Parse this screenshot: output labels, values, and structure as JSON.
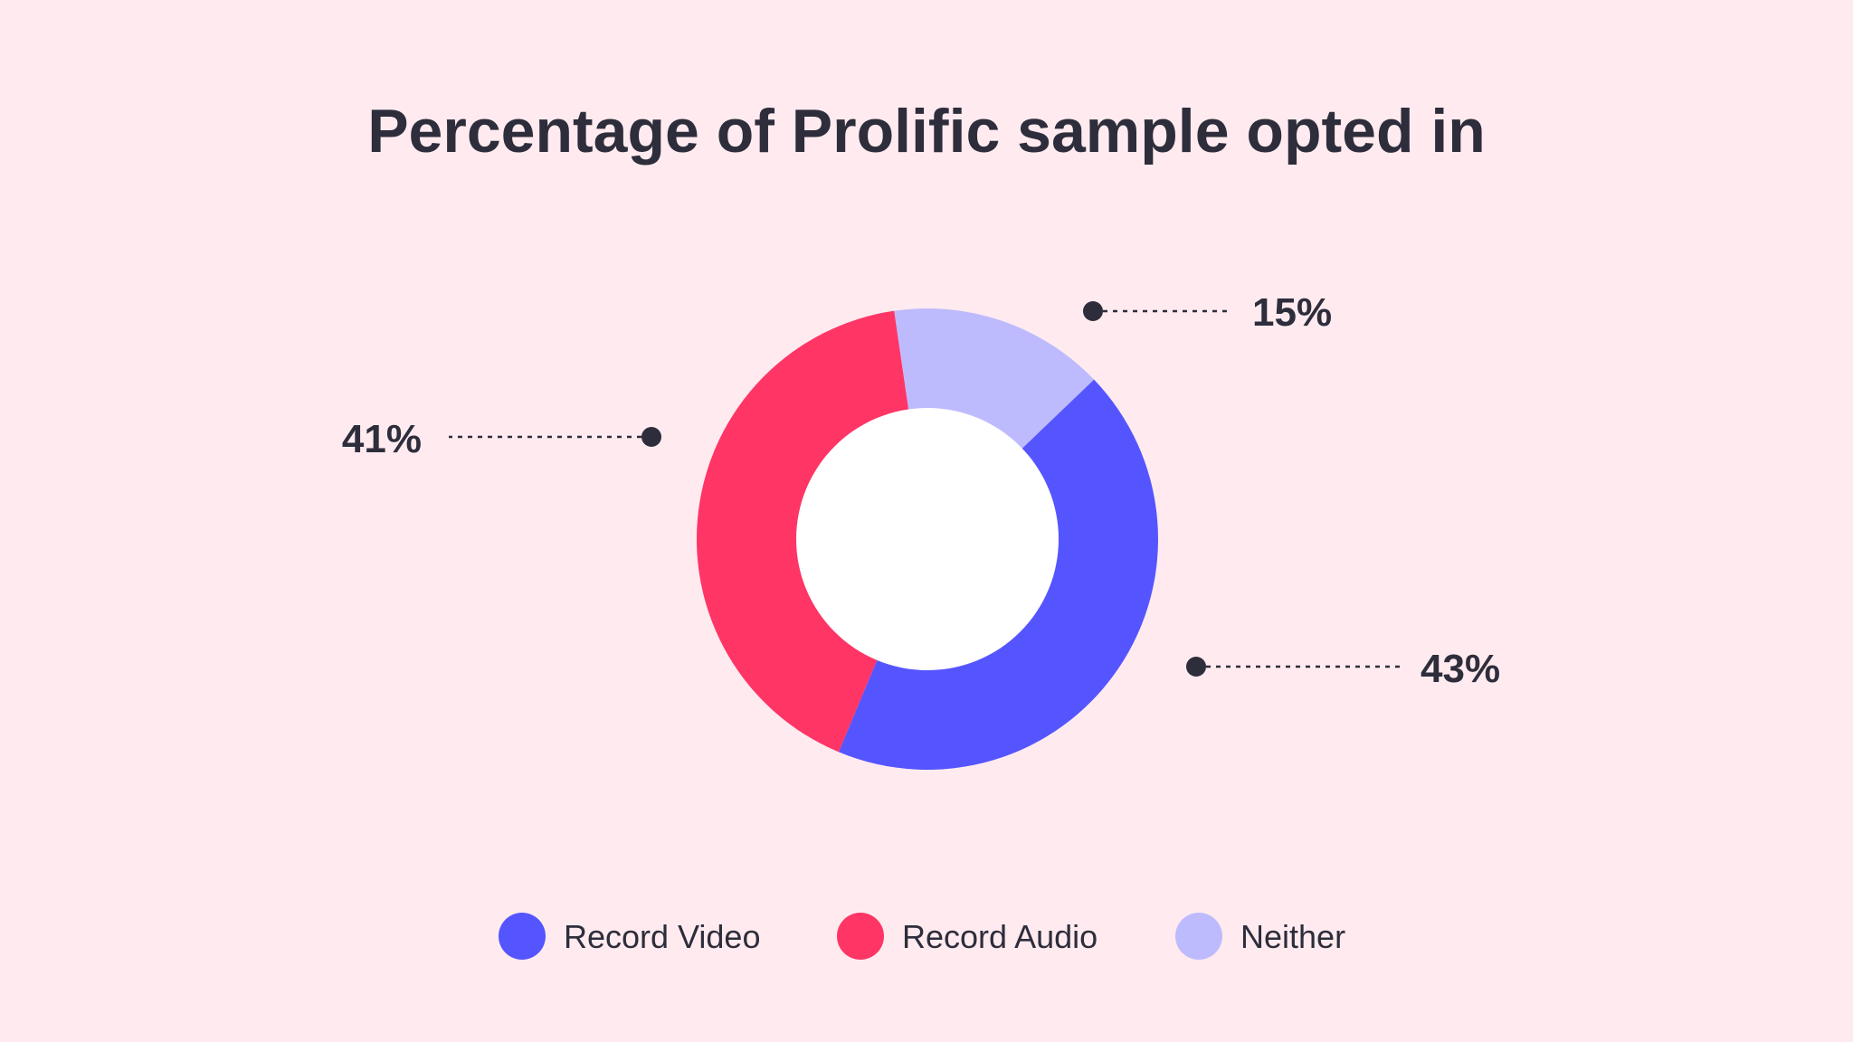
{
  "chart_data": {
    "type": "pie",
    "variant": "donut",
    "title": "Percentage of Prolific sample opted in",
    "categories": [
      "Record Video",
      "Record Audio",
      "Neither"
    ],
    "values": [
      43,
      41,
      15
    ],
    "value_labels": [
      "43%",
      "41%",
      "15%"
    ],
    "unit": "%",
    "colors": [
      "#5555ff",
      "#ff3566",
      "#bdbbfe"
    ],
    "legend_position": "bottom",
    "grid": false
  },
  "theme": {
    "background": "#ffebef",
    "text": "#2e2d3b",
    "hole": "#ffffff"
  }
}
